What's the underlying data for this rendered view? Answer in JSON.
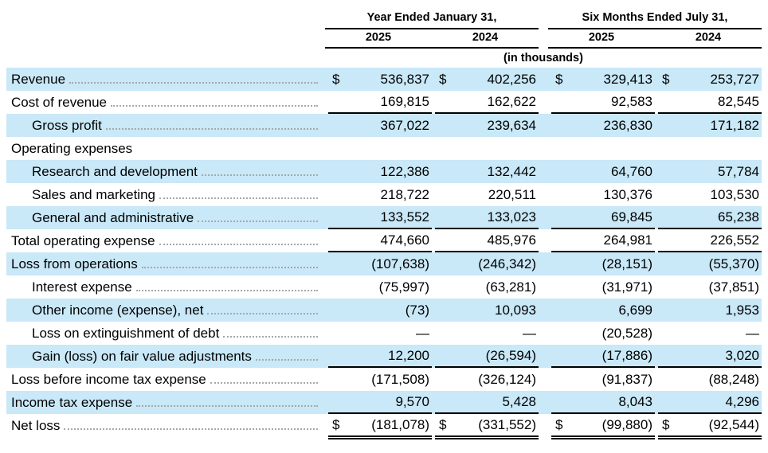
{
  "currency_symbol": "$",
  "colors": {
    "row_highlight": "#c9e8f8",
    "rule_color": "#000000",
    "leader_color": "#a8a8a8"
  },
  "table": {
    "col_groups": [
      {
        "title": "Year Ended January 31,",
        "years": [
          "2025",
          "2024"
        ]
      },
      {
        "title": "Six Months Ended July 31,",
        "years": [
          "2025",
          "2024"
        ]
      }
    ],
    "units_note": "(in thousands)",
    "rows": [
      {
        "label": "Revenue",
        "indent": 0,
        "shaded": true,
        "dollar": true,
        "underline": "none",
        "values": [
          "536,837",
          "402,256",
          "329,413",
          "253,727"
        ]
      },
      {
        "label": "Cost of revenue",
        "indent": 0,
        "shaded": false,
        "dollar": false,
        "underline": "single",
        "values": [
          "169,815",
          "162,622",
          "92,583",
          "82,545"
        ]
      },
      {
        "label": "Gross profit",
        "indent": 1,
        "shaded": true,
        "dollar": false,
        "underline": "none",
        "values": [
          "367,022",
          "239,634",
          "236,830",
          "171,182"
        ]
      },
      {
        "label": "Operating expenses",
        "indent": 0,
        "shaded": false,
        "dollar": false,
        "underline": "none",
        "values": null
      },
      {
        "label": "Research and development",
        "indent": 1,
        "shaded": true,
        "dollar": false,
        "underline": "none",
        "values": [
          "122,386",
          "132,442",
          "64,760",
          "57,784"
        ]
      },
      {
        "label": "Sales and marketing",
        "indent": 1,
        "shaded": false,
        "dollar": false,
        "underline": "none",
        "values": [
          "218,722",
          "220,511",
          "130,376",
          "103,530"
        ]
      },
      {
        "label": "General and administrative",
        "indent": 1,
        "shaded": true,
        "dollar": false,
        "underline": "single",
        "values": [
          "133,552",
          "133,023",
          "69,845",
          "65,238"
        ]
      },
      {
        "label": "Total operating expense",
        "indent": 0,
        "shaded": false,
        "dollar": false,
        "underline": "single",
        "values": [
          "474,660",
          "485,976",
          "264,981",
          "226,552"
        ]
      },
      {
        "label": "Loss from operations",
        "indent": 0,
        "shaded": true,
        "dollar": false,
        "underline": "none",
        "values": [
          "(107,638)",
          "(246,342)",
          "(28,151)",
          "(55,370)"
        ]
      },
      {
        "label": "Interest expense",
        "indent": 1,
        "shaded": false,
        "dollar": false,
        "underline": "none",
        "values": [
          "(75,997)",
          "(63,281)",
          "(31,971)",
          "(37,851)"
        ]
      },
      {
        "label": "Other income (expense), net",
        "indent": 1,
        "shaded": true,
        "dollar": false,
        "underline": "none",
        "values": [
          "(73)",
          "10,093",
          "6,699",
          "1,953"
        ]
      },
      {
        "label": "Loss on extinguishment of debt",
        "indent": 1,
        "shaded": false,
        "dollar": false,
        "underline": "none",
        "values": [
          "—",
          "—",
          "(20,528)",
          "—"
        ]
      },
      {
        "label": "Gain (loss) on fair value adjustments",
        "indent": 1,
        "shaded": true,
        "dollar": false,
        "underline": "single",
        "values": [
          "12,200",
          "(26,594)",
          "(17,886)",
          "3,020"
        ]
      },
      {
        "label": "Loss before income tax expense",
        "indent": 0,
        "shaded": false,
        "dollar": false,
        "underline": "none",
        "values": [
          "(171,508)",
          "(326,124)",
          "(91,837)",
          "(88,248)"
        ]
      },
      {
        "label": "Income tax expense",
        "indent": 0,
        "shaded": true,
        "dollar": false,
        "underline": "single",
        "values": [
          "9,570",
          "5,428",
          "8,043",
          "4,296"
        ]
      },
      {
        "label": "Net loss",
        "indent": 0,
        "shaded": false,
        "dollar": true,
        "underline": "double",
        "values": [
          "(181,078)",
          "(331,552)",
          "(99,880)",
          "(92,544)"
        ]
      }
    ]
  }
}
